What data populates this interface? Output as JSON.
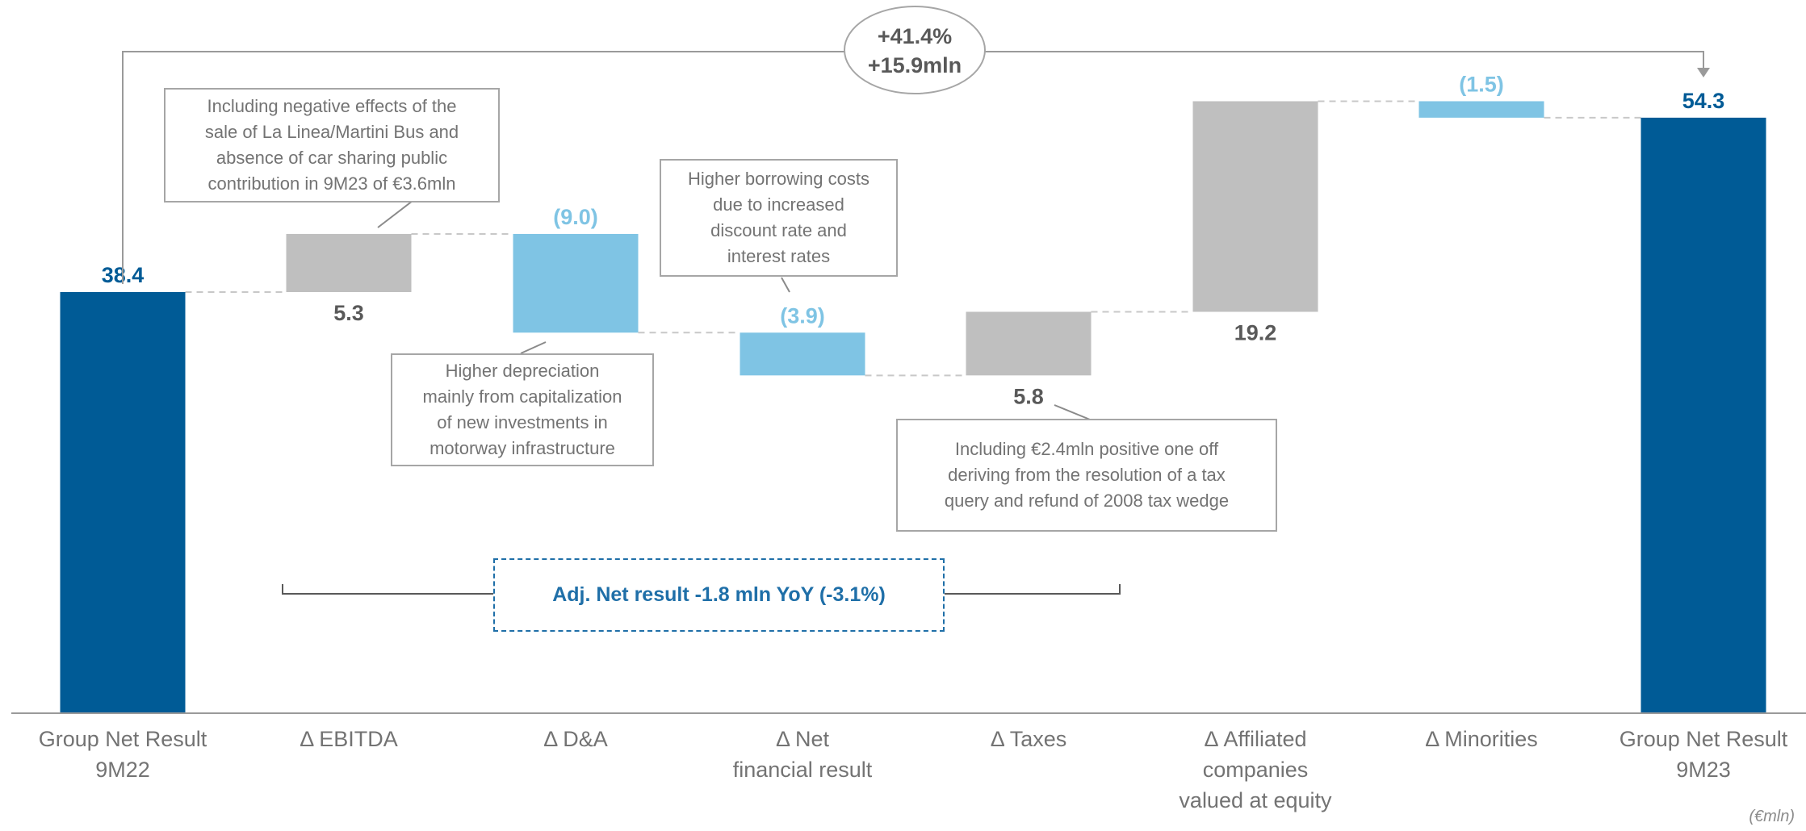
{
  "chart_data": {
    "type": "bar",
    "subtype": "waterfall",
    "categories": [
      [
        "Group Net Result",
        "9M22"
      ],
      [
        "Δ EBITDA"
      ],
      [
        "Δ D&A"
      ],
      [
        "Δ Net",
        "financial result"
      ],
      [
        "Δ Taxes"
      ],
      [
        "Δ Affiliated",
        "companies",
        "valued at equity"
      ],
      [
        "Δ Minorities"
      ],
      [
        "Group Net Result",
        "9M23"
      ]
    ],
    "steps": [
      {
        "kind": "total",
        "value": 38.4,
        "label": "38.4",
        "color": "#005b96",
        "label_color": "#005b96"
      },
      {
        "kind": "delta",
        "value": 5.3,
        "label": "5.3",
        "color": "#bfbfbf",
        "label_color": "#595959"
      },
      {
        "kind": "delta",
        "value": -9.0,
        "label": "(9.0)",
        "color": "#7fc4e4",
        "label_color": "#7fc4e4"
      },
      {
        "kind": "delta",
        "value": -3.9,
        "label": "(3.9)",
        "color": "#7fc4e4",
        "label_color": "#7fc4e4"
      },
      {
        "kind": "delta",
        "value": 5.8,
        "label": "5.8",
        "color": "#bfbfbf",
        "label_color": "#595959"
      },
      {
        "kind": "delta",
        "value": 19.2,
        "label": "19.2",
        "color": "#bfbfbf",
        "label_color": "#595959"
      },
      {
        "kind": "delta",
        "value": -1.5,
        "label": "(1.5)",
        "color": "#7fc4e4",
        "label_color": "#7fc4e4"
      },
      {
        "kind": "total",
        "value": 54.3,
        "label": "54.3",
        "color": "#005b96",
        "label_color": "#005b96"
      }
    ],
    "ylim": [
      0,
      64
    ],
    "grid": false,
    "unit": "(€mln)",
    "change_badge": {
      "pct": "+41.4%",
      "abs": "+15.9mln"
    }
  },
  "callouts": {
    "ebitda": [
      "Including negative effects of the",
      "sale of La Linea/Martini Bus and",
      "absence of car sharing public",
      "contribution in 9M23 of €3.6mln"
    ],
    "da": [
      "Higher depreciation",
      "mainly from capitalization",
      "of new investments in",
      "motorway infrastructure"
    ],
    "netfin": [
      "Higher borrowing costs",
      "due to increased",
      "discount rate and",
      "interest rates"
    ],
    "taxes": [
      "Including €2.4mln positive one off",
      "deriving from the resolution of a tax",
      "query and refund of 2008 tax wedge"
    ]
  },
  "adjusted_note": "Adj. Net result -1.8 mln YoY (-3.1%)",
  "colors": {
    "total": "#005b96",
    "increase": "#bfbfbf",
    "decrease": "#7fc4e4",
    "connector": "#c8c8c8"
  }
}
